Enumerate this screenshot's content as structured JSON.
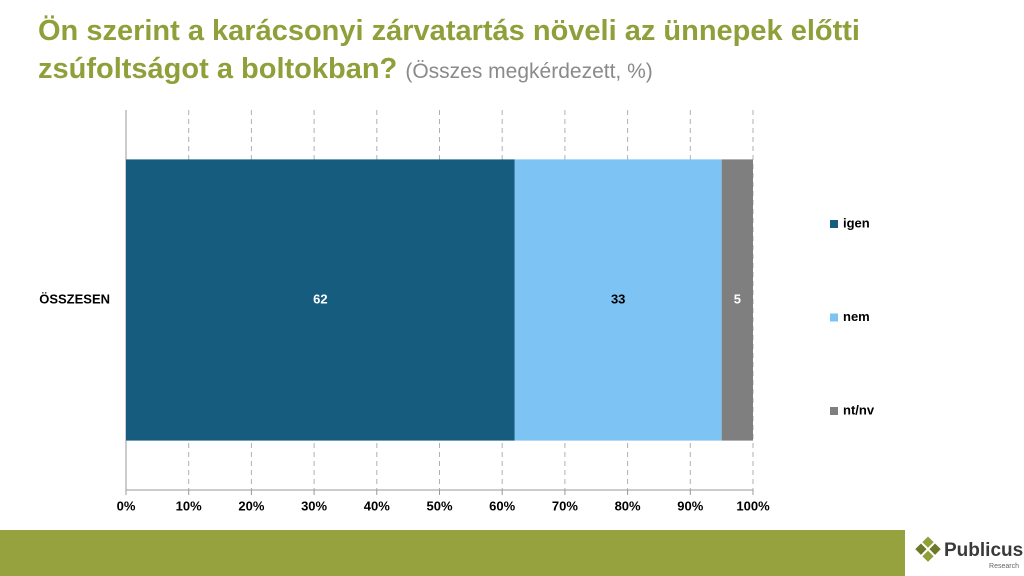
{
  "chart_data": {
    "type": "bar",
    "orientation": "horizontal",
    "stacked": true,
    "title": "Ön szerint a karácsonyi zárvatartás növeli az ünnepek előtti zsúfoltságot a boltokban?",
    "subtitle": "(Összes megkérdezett, %)",
    "categories": [
      "ÖSSZESEN"
    ],
    "series": [
      {
        "name": "igen",
        "color": "#155c7e",
        "values": [
          62
        ]
      },
      {
        "name": "nem",
        "color": "#7dc3f4",
        "values": [
          33
        ]
      },
      {
        "name": "nt/nv",
        "color": "#7f7f7f",
        "values": [
          5
        ]
      }
    ],
    "xlim": [
      0,
      100
    ],
    "xticks": [
      {
        "value": 0,
        "label": "0%"
      },
      {
        "value": 10,
        "label": "10%"
      },
      {
        "value": 20,
        "label": "20%"
      },
      {
        "value": 30,
        "label": "30%"
      },
      {
        "value": 40,
        "label": "40%"
      },
      {
        "value": 50,
        "label": "50%"
      },
      {
        "value": 60,
        "label": "60%"
      },
      {
        "value": 70,
        "label": "70%"
      },
      {
        "value": 80,
        "label": "80%"
      },
      {
        "value": 90,
        "label": "90%"
      },
      {
        "value": 100,
        "label": "100%"
      }
    ],
    "grid": true,
    "legend": "right"
  },
  "branding": {
    "name": "Publicus",
    "tagline": "Research"
  }
}
